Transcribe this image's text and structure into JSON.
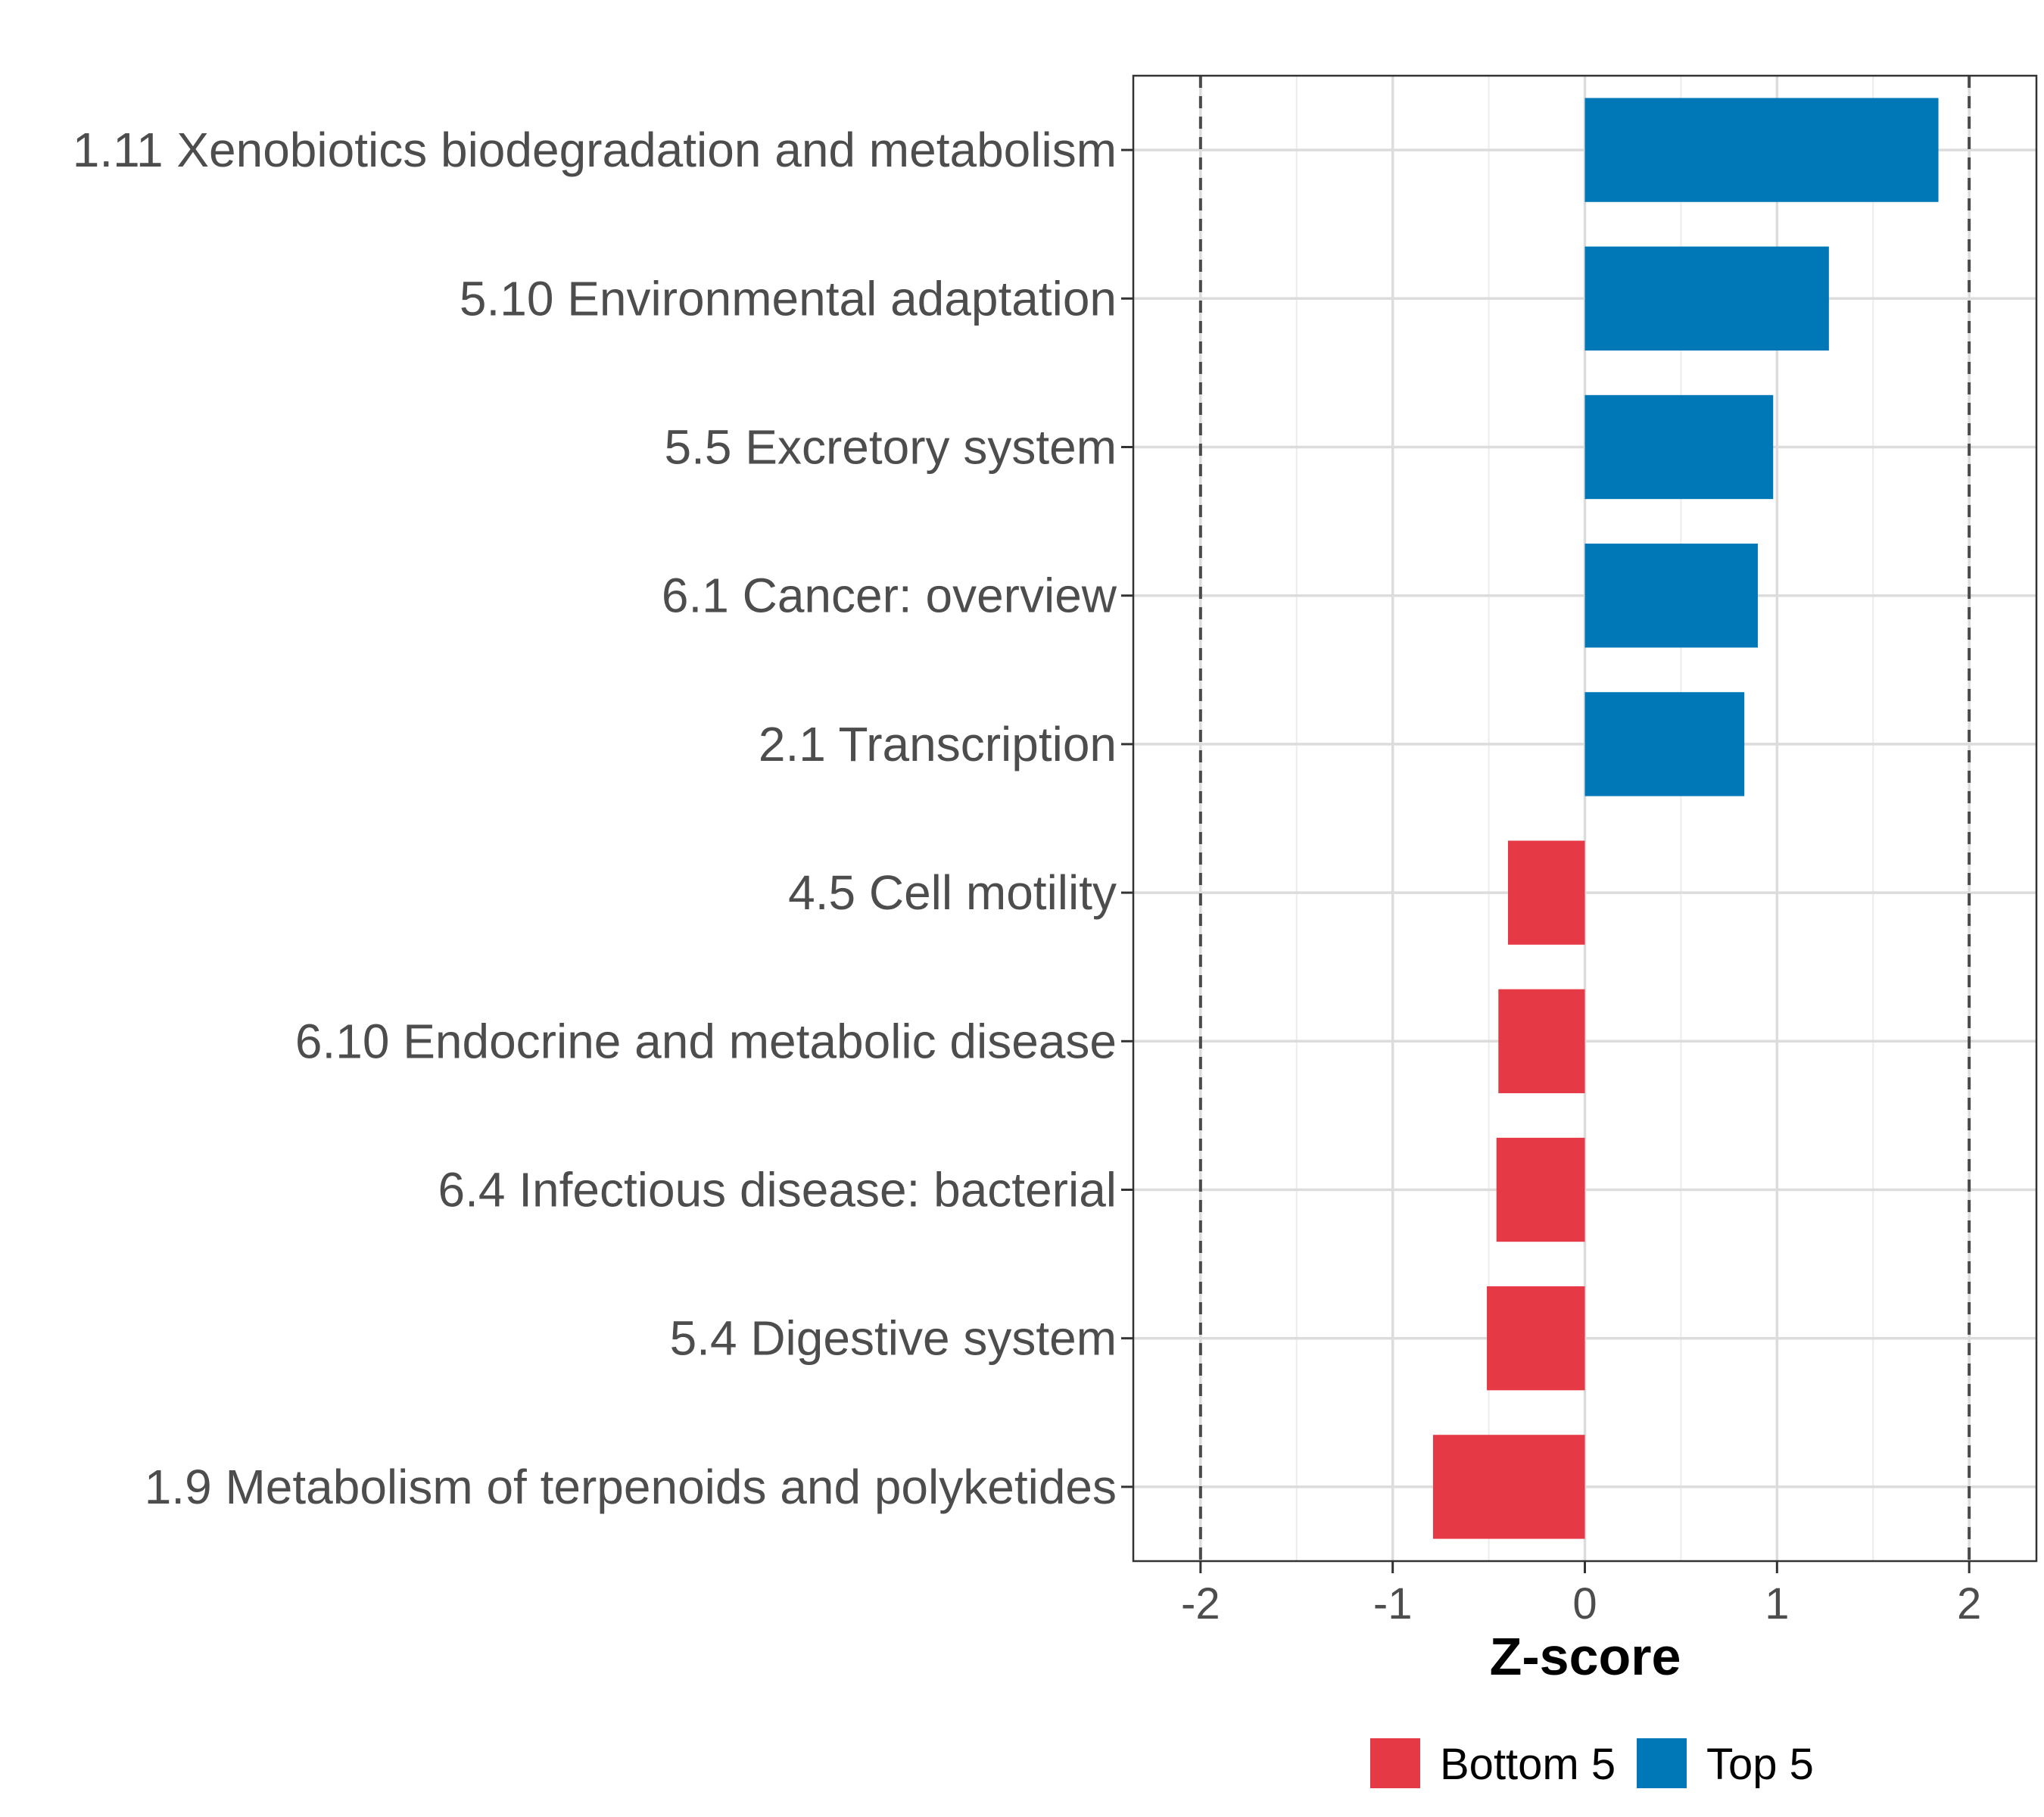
{
  "chart_data": {
    "type": "bar",
    "orientation": "horizontal",
    "xlabel": "Z-score",
    "ylabel": "",
    "xlim": [
      -2.35,
      2.35
    ],
    "xticks": [
      -2,
      -1,
      0,
      1,
      2
    ],
    "xtick_labels": [
      "-2",
      "-1",
      "0",
      "1",
      "2"
    ],
    "reference_lines": [
      -2,
      2
    ],
    "grid": true,
    "categories": [
      "1.11 Xenobiotics biodegradation and metabolism",
      "5.10 Environmental adaptation",
      "5.5 Excretory system",
      "6.1 Cancer: overview",
      "2.1 Transcription",
      "4.5 Cell motility",
      "6.10 Endocrine and metabolic disease",
      "6.4 Infectious disease: bacterial",
      "5.4 Digestive system",
      "1.9 Metabolism of terpenoids and polyketides"
    ],
    "values": [
      1.84,
      1.27,
      0.98,
      0.9,
      0.83,
      -0.4,
      -0.45,
      -0.46,
      -0.51,
      -0.79
    ],
    "groups": [
      "Top 5",
      "Top 5",
      "Top 5",
      "Top 5",
      "Top 5",
      "Bottom 5",
      "Bottom 5",
      "Bottom 5",
      "Bottom 5",
      "Bottom 5"
    ],
    "legend": [
      {
        "label": "Bottom 5",
        "color": "#e63946"
      },
      {
        "label": "Top 5",
        "color": "#0077b6"
      }
    ],
    "legend_position": "bottom"
  }
}
